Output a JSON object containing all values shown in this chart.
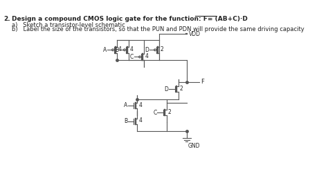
{
  "title_prefix": "2.   Design a compound CMOS logic gate for the function: F= ",
  "title_formula": "(AB+C)·D",
  "subtitle_a": "a)   Sketch a transistor-level schematic",
  "subtitle_b": "b)   Label the size of the transistors, so that the PUN and PDN will provide the same driving capacity",
  "bg_color": "#ffffff",
  "line_color": "#555555",
  "text_color": "#222222",
  "vdd_label": "VDD",
  "gnd_label": "GND",
  "output_label": "F",
  "fig_w": 4.74,
  "fig_h": 2.71,
  "dpi": 100
}
